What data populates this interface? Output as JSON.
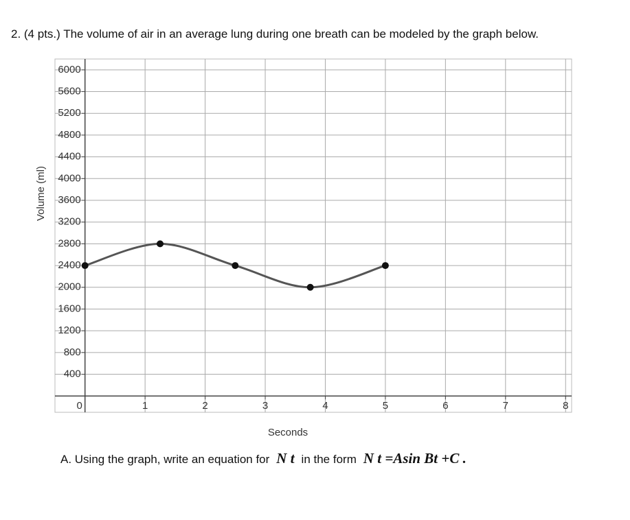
{
  "question": {
    "text": "2. (4 pts.) The volume of air in an average lung during one breath can be modeled by the graph below."
  },
  "chart_data": {
    "type": "line",
    "x_label": "Seconds",
    "y_label": "Volume (ml)",
    "x": [
      0,
      1.25,
      2.5,
      3.75,
      5
    ],
    "series": [
      {
        "color": "#555555",
        "values": [
          2400,
          2800,
          2400,
          2000,
          2400
        ]
      }
    ],
    "xlim": [
      -0.5,
      8.1
    ],
    "ylim": [
      -300,
      6200
    ],
    "xticks": [
      0,
      1,
      2,
      3,
      4,
      5,
      6,
      7,
      8
    ],
    "yticks": [
      400,
      800,
      1200,
      1600,
      2000,
      2400,
      2800,
      3200,
      3600,
      4000,
      4400,
      4800,
      5200,
      5600,
      6000
    ],
    "grid": true
  },
  "part_a": {
    "text1": "A. Using the graph, write an equation for",
    "expr1": "N t",
    "text2": "in the form",
    "expr2": "N t =Asin Bt +C ."
  }
}
